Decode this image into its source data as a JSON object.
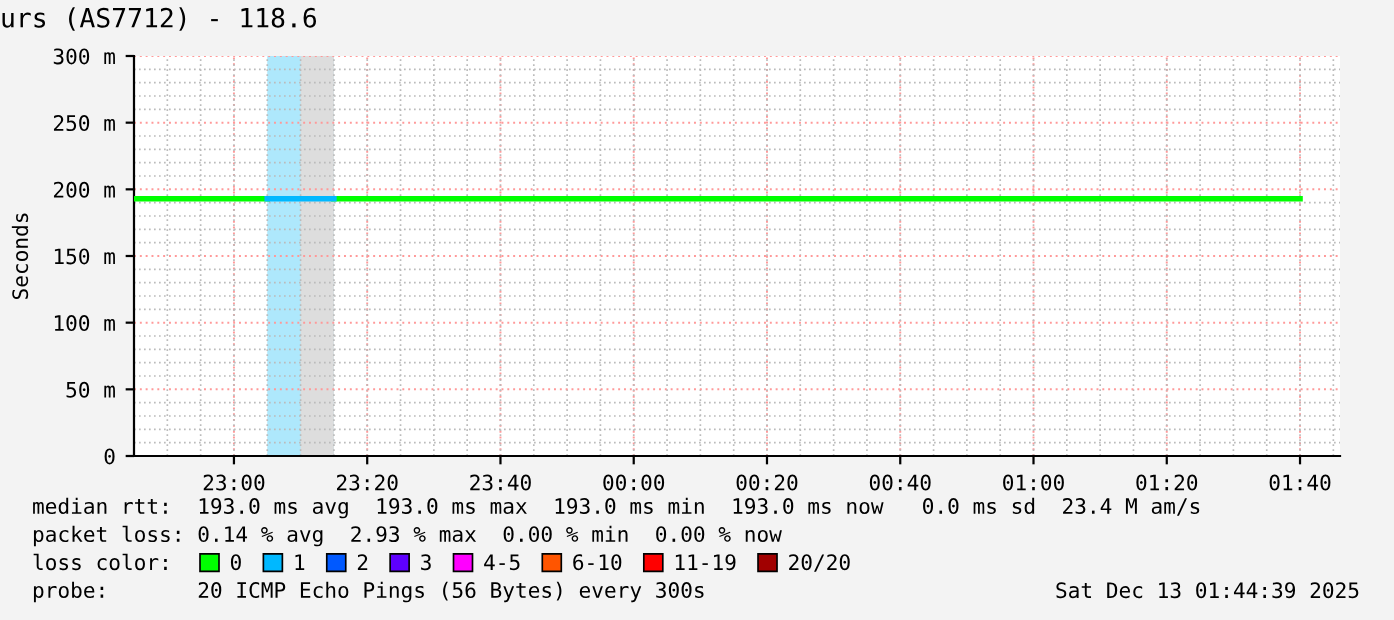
{
  "chart_data": {
    "type": "line",
    "title": "urs (AS7712) - 118.6",
    "ylabel": "Seconds",
    "xlim": [
      "2025-12-12T22:45",
      "2025-12-13T01:46"
    ],
    "ylim": [
      0,
      300
    ],
    "xticks": [
      {
        "value": "2025-12-12T23:00",
        "label": "23:00"
      },
      {
        "value": "2025-12-12T23:20",
        "label": "23:20"
      },
      {
        "value": "2025-12-12T23:40",
        "label": "23:40"
      },
      {
        "value": "2025-12-13T00:00",
        "label": "00:00"
      },
      {
        "value": "2025-12-13T00:20",
        "label": "00:20"
      },
      {
        "value": "2025-12-13T00:40",
        "label": "00:40"
      },
      {
        "value": "2025-12-13T01:00",
        "label": "01:00"
      },
      {
        "value": "2025-12-13T01:20",
        "label": "01:20"
      },
      {
        "value": "2025-12-13T01:40",
        "label": "01:40"
      }
    ],
    "yticks": [
      0,
      {
        "value": 50,
        "label": "50 m"
      },
      {
        "value": 100,
        "label": "100 m"
      },
      {
        "value": 150,
        "label": "150 m"
      },
      {
        "value": 200,
        "label": "200 m"
      },
      {
        "value": 250,
        "label": "250 m"
      },
      {
        "value": 300,
        "label": "300 m"
      }
    ],
    "grid": true,
    "legend": "bottom",
    "legend_title": "loss color:",
    "bands": [
      {
        "axis": "x",
        "from": "2025-12-12T23:05",
        "to": "2025-12-12T23:15",
        "color": "#aee8fc"
      },
      {
        "axis": "x",
        "from": "2025-12-12T23:10",
        "to": "2025-12-12T23:15",
        "color": "#dddddd"
      }
    ],
    "series": [
      {
        "name": "0",
        "color": "#00ff00",
        "x": [
          "2025-12-12T22:45",
          "2025-12-12T23:05",
          "2025-12-12T23:10",
          "2025-12-12T23:15",
          "2025-12-13T01:40"
        ],
        "values": [
          193,
          193,
          null,
          193,
          193
        ]
      },
      {
        "name": "1",
        "color": "#00b8ff",
        "x": [
          "2025-12-12T23:05",
          "2025-12-12T23:15"
        ],
        "values": [
          193,
          193
        ]
      },
      {
        "name": "2",
        "color": "#0059ff"
      },
      {
        "name": "3",
        "color": "#5e00ff"
      },
      {
        "name": "4-5",
        "color": "#ff00ff"
      },
      {
        "name": "6-10",
        "color": "#ff5500"
      },
      {
        "name": "11-19",
        "color": "#ff0000"
      },
      {
        "name": "20/20",
        "color": "#a10000"
      }
    ],
    "annotations": [
      "median rtt:  193.0 ms avg  193.0 ms max  193.0 ms min  193.0 ms now   0.0 ms sd  23.4 M am/s",
      "packet loss: 0.14 % avg  2.93 % max  0.00 % min  0.00 % now",
      "probe:       20 ICMP Echo Pings (56 Bytes) every 300s",
      "Sat Dec 13 01:44:39 2025"
    ]
  }
}
